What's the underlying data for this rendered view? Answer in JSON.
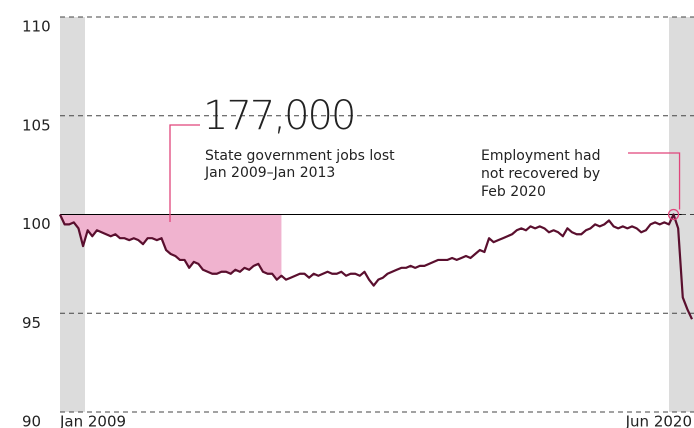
{
  "chart_data": {
    "type": "line",
    "categories": [
      "Jan 2009",
      null,
      null,
      null,
      null,
      null,
      null,
      null,
      null,
      null,
      null,
      null,
      null,
      null,
      null,
      null,
      null,
      null,
      null,
      null,
      null,
      null,
      null,
      null,
      null,
      null,
      null,
      null,
      null,
      null,
      null,
      null,
      null,
      null,
      null,
      null,
      null,
      null,
      null,
      null,
      null,
      null,
      null,
      null,
      null,
      null,
      null,
      null,
      null,
      null,
      null,
      null,
      null,
      null,
      null,
      null,
      null,
      null,
      null,
      null,
      null,
      null,
      null,
      null,
      null,
      null,
      null,
      null,
      null,
      null,
      null,
      null,
      null,
      null,
      null,
      null,
      null,
      null,
      null,
      null,
      null,
      null,
      null,
      null,
      null,
      null,
      null,
      null,
      null,
      null,
      null,
      null,
      null,
      null,
      null,
      null,
      null,
      null,
      null,
      null,
      null,
      null,
      null,
      null,
      null,
      null,
      null,
      null,
      null,
      null,
      null,
      null,
      null,
      null,
      null,
      null,
      null,
      null,
      null,
      null,
      null,
      null,
      null,
      null,
      null,
      null,
      null,
      null,
      null,
      null,
      null,
      null,
      null,
      null,
      null,
      null,
      null,
      "Jun 2020"
    ],
    "series": [
      {
        "color": "#5a0f2e",
        "values": [
          100,
          99.5,
          99.5,
          99.6,
          99.3,
          98.4,
          99.2,
          98.9,
          99.2,
          99.1,
          99.0,
          98.9,
          99.0,
          98.8,
          98.8,
          98.7,
          98.8,
          98.7,
          98.5,
          98.8,
          98.8,
          98.7,
          98.8,
          98.2,
          98.0,
          97.9,
          97.7,
          97.7,
          97.3,
          97.6,
          97.5,
          97.2,
          97.1,
          97.0,
          97.0,
          97.1,
          97.1,
          97.0,
          97.2,
          97.1,
          97.3,
          97.2,
          97.4,
          97.5,
          97.1,
          97.0,
          97.0,
          96.7,
          96.9,
          96.7,
          96.8,
          96.9,
          97.0,
          97.0,
          96.8,
          97.0,
          96.9,
          97.0,
          97.1,
          97.0,
          97.0,
          97.1,
          96.9,
          97.0,
          97.0,
          96.9,
          97.1,
          96.7,
          96.4,
          96.7,
          96.8,
          97.0,
          97.1,
          97.2,
          97.3,
          97.3,
          97.4,
          97.3,
          97.4,
          97.4,
          97.5,
          97.6,
          97.7,
          97.7,
          97.7,
          97.8,
          97.7,
          97.8,
          97.9,
          97.8,
          98.0,
          98.2,
          98.1,
          98.8,
          98.6,
          98.7,
          98.8,
          98.9,
          99.0,
          99.2,
          99.3,
          99.2,
          99.4,
          99.3,
          99.4,
          99.3,
          99.1,
          99.2,
          99.1,
          98.9,
          99.3,
          99.1,
          99.0,
          99.0,
          99.2,
          99.3,
          99.5,
          99.4,
          99.5,
          99.7,
          99.4,
          99.3,
          99.4,
          99.3,
          99.4,
          99.3,
          99.1,
          99.2,
          99.5,
          99.6,
          99.5,
          99.6,
          99.5,
          100.0,
          99.3,
          95.8,
          95.2,
          94.7
        ]
      }
    ],
    "ylim": [
      90,
      110
    ],
    "yticks": [
      90,
      95,
      100,
      105,
      110
    ],
    "grid": true,
    "annotations": [
      {
        "headline": "177,000",
        "lines": [
          "State government jobs lost",
          "Jan 2009–Jan 2013"
        ]
      },
      {
        "lines": [
          "Employment had",
          "not recovered by",
          "Feb 2020"
        ]
      }
    ]
  }
}
